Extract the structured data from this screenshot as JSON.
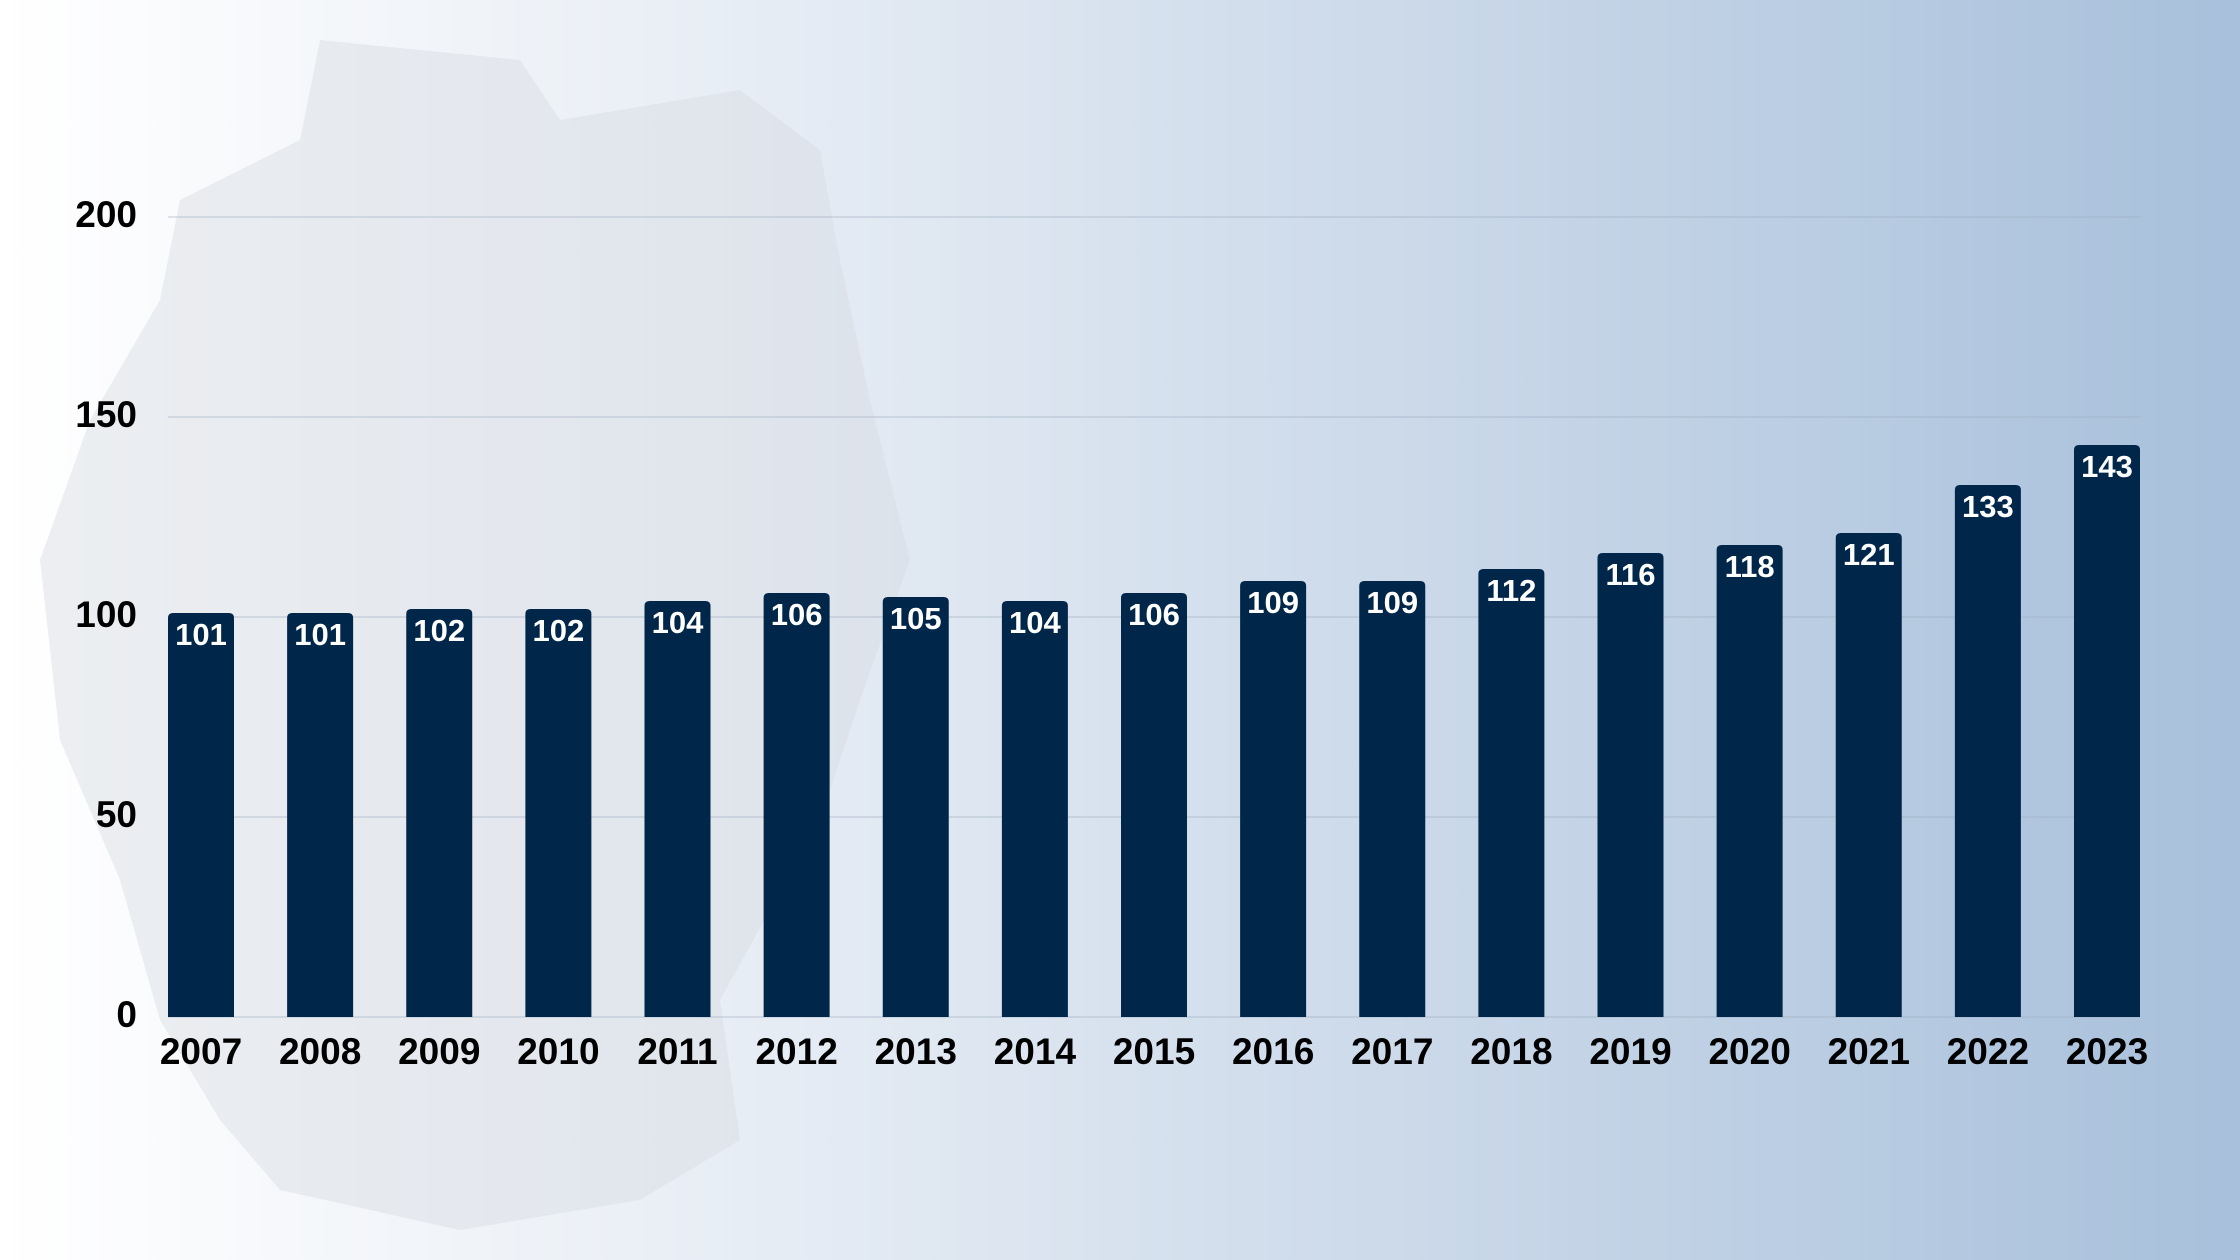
{
  "chart_data": {
    "type": "bar",
    "categories": [
      "2007",
      "2008",
      "2009",
      "2010",
      "2011",
      "2012",
      "2013",
      "2014",
      "2015",
      "2016",
      "2017",
      "2018",
      "2019",
      "2020",
      "2021",
      "2022",
      "2023"
    ],
    "values": [
      101,
      101,
      102,
      102,
      104,
      106,
      105,
      104,
      106,
      109,
      109,
      112,
      116,
      118,
      121,
      133,
      143
    ],
    "color": "#00264a",
    "ylim": [
      0,
      200
    ],
    "yticks": [
      0,
      50,
      100,
      150,
      200
    ],
    "grid": true
  }
}
